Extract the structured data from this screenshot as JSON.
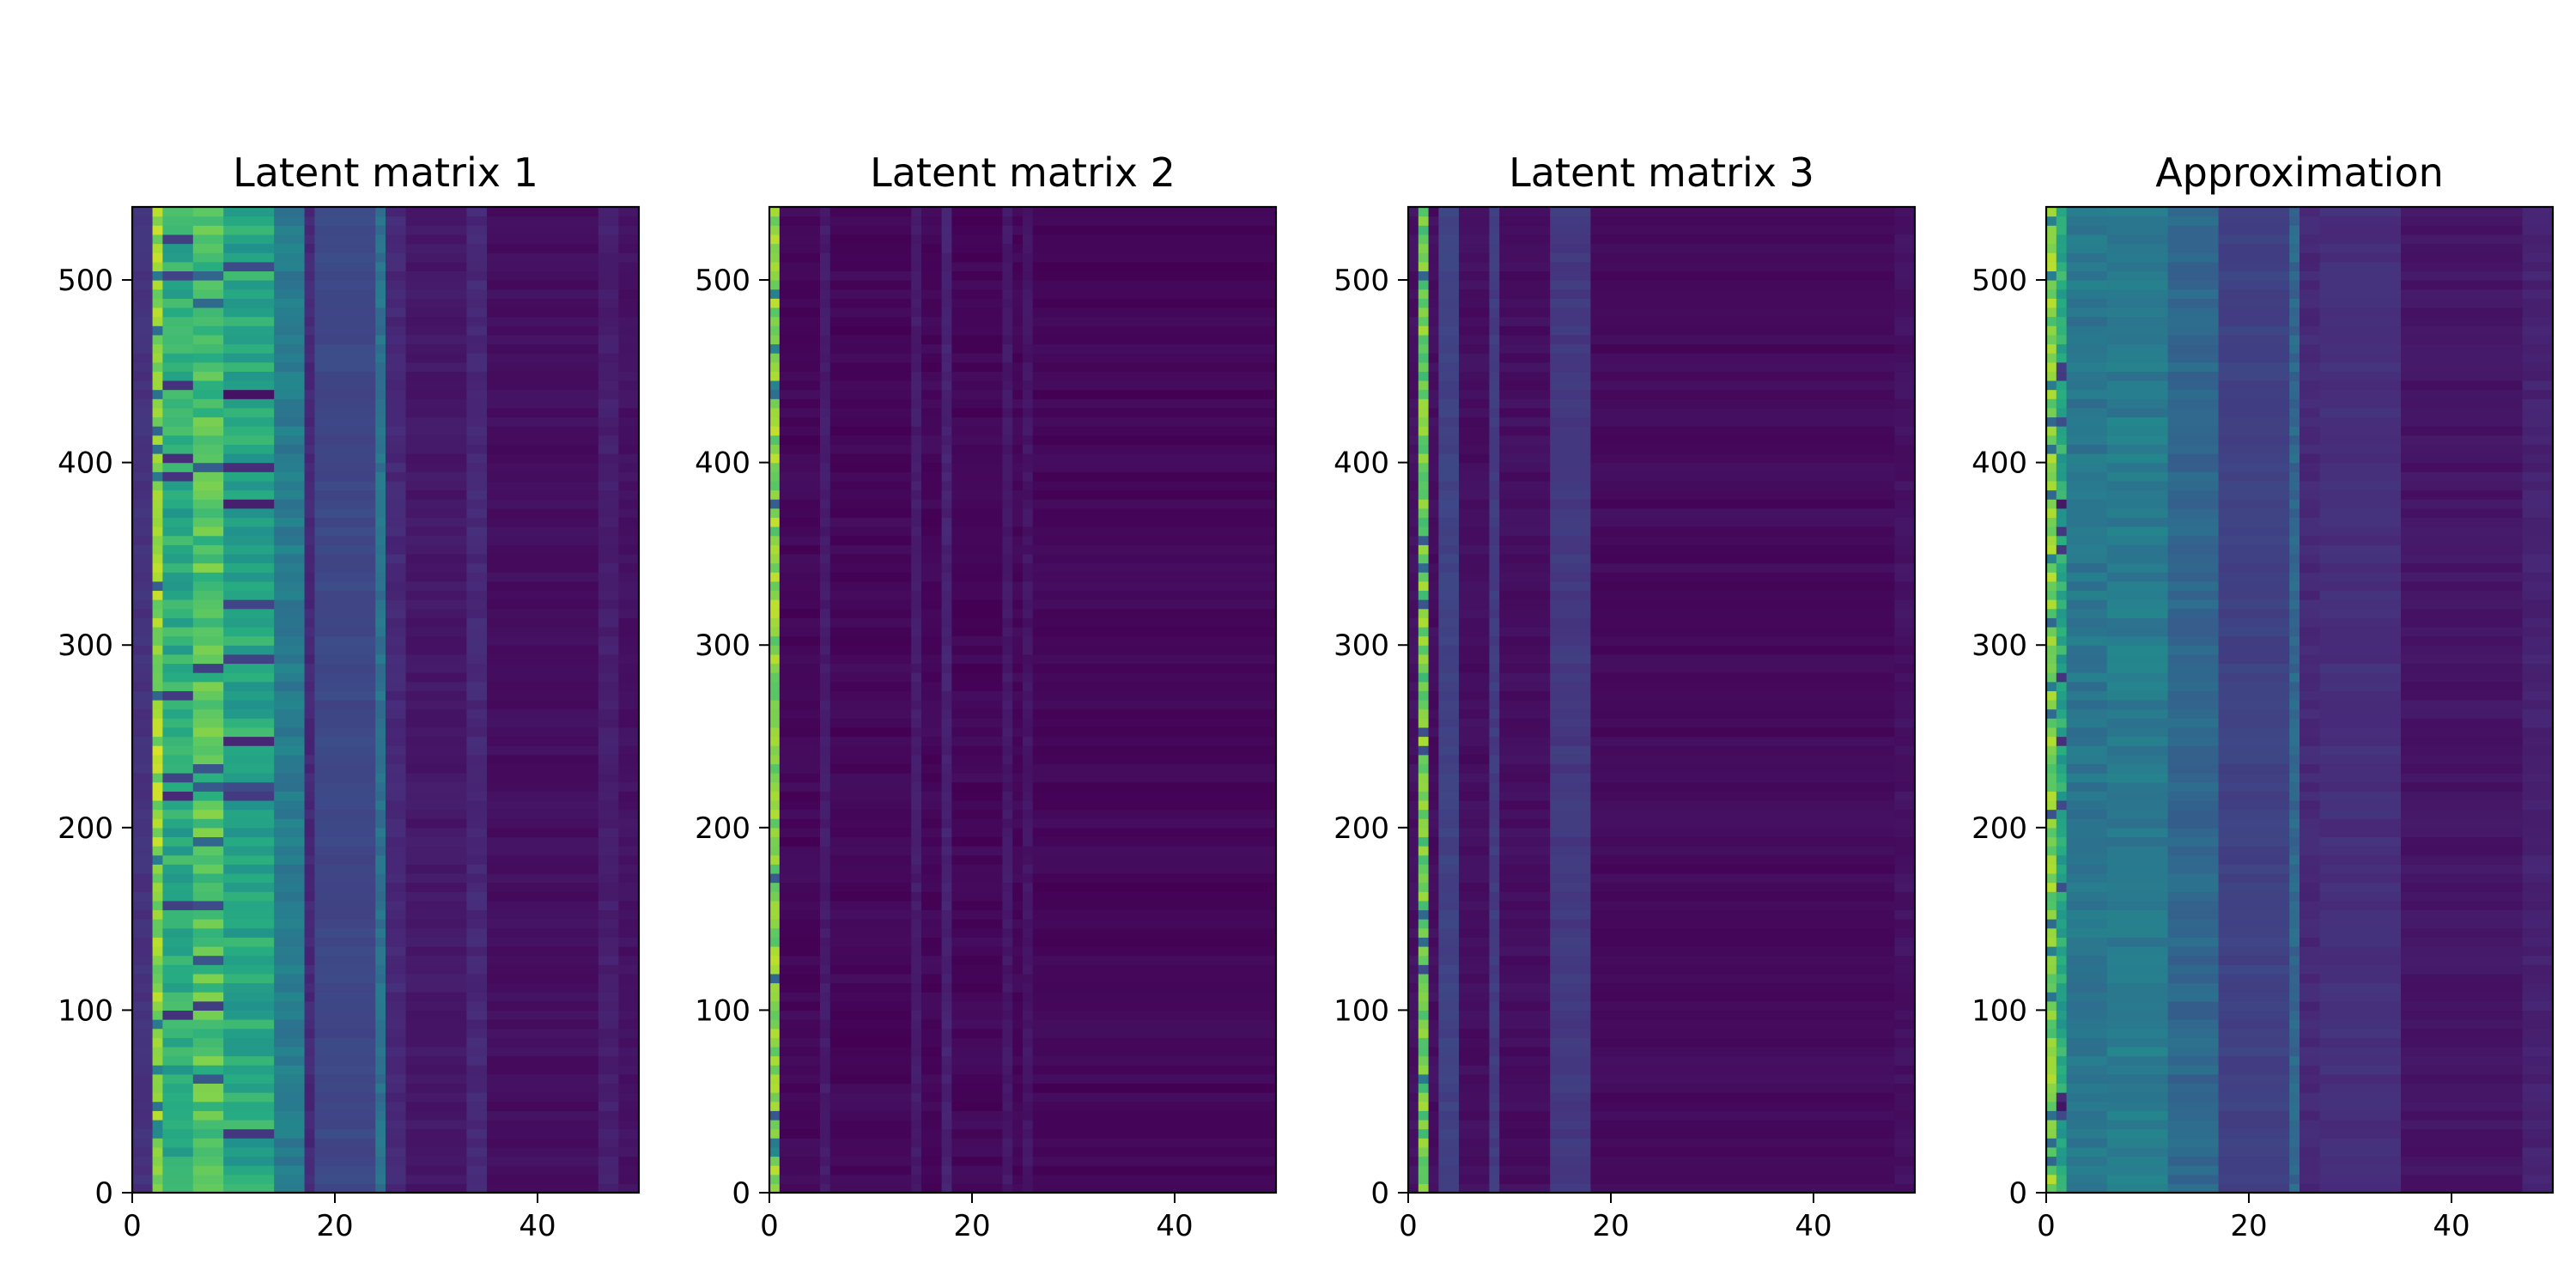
{
  "chart_data": [
    {
      "type": "heatmap",
      "title": "Latent matrix 1",
      "xlabel": "",
      "ylabel": "",
      "xlim": [
        0,
        50
      ],
      "ylim": [
        0,
        540
      ],
      "x_ticks": [
        0,
        20,
        40
      ],
      "y_ticks": [
        0,
        100,
        200,
        300,
        400,
        500
      ],
      "colormap": "viridis",
      "grid": false,
      "column_profile": [
        {
          "x0": 0,
          "x1": 2,
          "value": 0.15
        },
        {
          "x0": 2,
          "x1": 3,
          "value": 0.85
        },
        {
          "x0": 3,
          "x1": 6,
          "value": 0.62
        },
        {
          "x0": 6,
          "x1": 9,
          "value": 0.72
        },
        {
          "x0": 9,
          "x1": 14,
          "value": 0.6
        },
        {
          "x0": 14,
          "x1": 17,
          "value": 0.42
        },
        {
          "x0": 17,
          "x1": 18,
          "value": 0.12
        },
        {
          "x0": 18,
          "x1": 24,
          "value": 0.22
        },
        {
          "x0": 24,
          "x1": 25,
          "value": 0.38
        },
        {
          "x0": 25,
          "x1": 27,
          "value": 0.12
        },
        {
          "x0": 27,
          "x1": 33,
          "value": 0.07
        },
        {
          "x0": 33,
          "x1": 35,
          "value": 0.12
        },
        {
          "x0": 35,
          "x1": 46,
          "value": 0.04
        },
        {
          "x0": 46,
          "x1": 48,
          "value": 0.09
        },
        {
          "x0": 48,
          "x1": 50,
          "value": 0.05
        }
      ]
    },
    {
      "type": "heatmap",
      "title": "Latent matrix 2",
      "xlabel": "",
      "ylabel": "",
      "xlim": [
        0,
        50
      ],
      "ylim": [
        0,
        540
      ],
      "x_ticks": [
        0,
        20,
        40
      ],
      "y_ticks": [
        0,
        100,
        200,
        300,
        400,
        500
      ],
      "colormap": "viridis",
      "grid": false,
      "column_profile": [
        {
          "x0": 0,
          "x1": 1,
          "value": 0.82
        },
        {
          "x0": 1,
          "x1": 5,
          "value": 0.02
        },
        {
          "x0": 5,
          "x1": 6,
          "value": 0.08
        },
        {
          "x0": 6,
          "x1": 14,
          "value": 0.02
        },
        {
          "x0": 14,
          "x1": 15,
          "value": 0.08
        },
        {
          "x0": 15,
          "x1": 17,
          "value": 0.02
        },
        {
          "x0": 17,
          "x1": 18,
          "value": 0.1
        },
        {
          "x0": 18,
          "x1": 23,
          "value": 0.02
        },
        {
          "x0": 23,
          "x1": 24,
          "value": 0.07
        },
        {
          "x0": 24,
          "x1": 25,
          "value": 0.02
        },
        {
          "x0": 25,
          "x1": 26,
          "value": 0.06
        },
        {
          "x0": 26,
          "x1": 50,
          "value": 0.02
        }
      ]
    },
    {
      "type": "heatmap",
      "title": "Latent matrix 3",
      "xlabel": "",
      "ylabel": "",
      "xlim": [
        0,
        50
      ],
      "ylim": [
        0,
        540
      ],
      "x_ticks": [
        0,
        20,
        40
      ],
      "y_ticks": [
        0,
        100,
        200,
        300,
        400,
        500
      ],
      "colormap": "viridis",
      "grid": false,
      "column_profile": [
        {
          "x0": 0,
          "x1": 1,
          "value": 0.05
        },
        {
          "x0": 1,
          "x1": 2,
          "value": 0.78
        },
        {
          "x0": 2,
          "x1": 3,
          "value": 0.04
        },
        {
          "x0": 3,
          "x1": 5,
          "value": 0.2
        },
        {
          "x0": 5,
          "x1": 8,
          "value": 0.04
        },
        {
          "x0": 8,
          "x1": 9,
          "value": 0.18
        },
        {
          "x0": 9,
          "x1": 14,
          "value": 0.04
        },
        {
          "x0": 14,
          "x1": 18,
          "value": 0.17
        },
        {
          "x0": 18,
          "x1": 48,
          "value": 0.03
        },
        {
          "x0": 48,
          "x1": 50,
          "value": 0.05
        }
      ]
    },
    {
      "type": "heatmap",
      "title": "Approximation",
      "xlabel": "",
      "ylabel": "",
      "xlim": [
        0,
        50
      ],
      "ylim": [
        0,
        540
      ],
      "x_ticks": [
        0,
        20,
        40
      ],
      "y_ticks": [
        0,
        100,
        200,
        300,
        400,
        500
      ],
      "colormap": "viridis",
      "grid": false,
      "column_profile": [
        {
          "x0": 0,
          "x1": 1,
          "value": 0.8
        },
        {
          "x0": 1,
          "x1": 2,
          "value": 0.6
        },
        {
          "x0": 2,
          "x1": 6,
          "value": 0.4
        },
        {
          "x0": 6,
          "x1": 12,
          "value": 0.42
        },
        {
          "x0": 12,
          "x1": 17,
          "value": 0.34
        },
        {
          "x0": 17,
          "x1": 24,
          "value": 0.2
        },
        {
          "x0": 24,
          "x1": 25,
          "value": 0.34
        },
        {
          "x0": 25,
          "x1": 27,
          "value": 0.12
        },
        {
          "x0": 27,
          "x1": 35,
          "value": 0.14
        },
        {
          "x0": 35,
          "x1": 47,
          "value": 0.06
        },
        {
          "x0": 47,
          "x1": 50,
          "value": 0.1
        }
      ]
    }
  ]
}
